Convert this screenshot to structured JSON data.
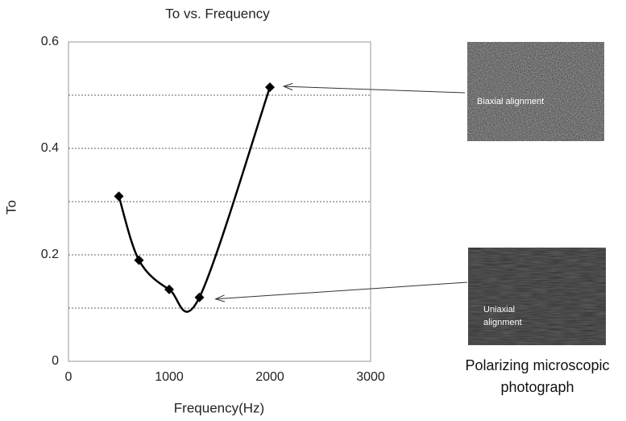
{
  "chart_data": {
    "type": "line",
    "title": "To vs. Frequency",
    "x_label": "Frequency(Hz)",
    "y_label": "To",
    "x": [
      500,
      700,
      1000,
      1300,
      2000
    ],
    "values": [
      0.31,
      0.19,
      0.135,
      0.12,
      0.515
    ],
    "color": "#000000",
    "xlim": [
      0,
      3000
    ],
    "xticks": [
      0,
      1000,
      2000,
      3000
    ],
    "ylim": [
      0,
      0.6
    ],
    "yticks": [
      0,
      0.2,
      0.4,
      0.6
    ],
    "grid_lines": [
      0.1,
      0.2,
      0.3,
      0.4,
      0.5
    ],
    "annotations": [
      {
        "text": "Biaxial alignment",
        "x": 2000,
        "y": 0.515
      },
      {
        "text": "Uniaxial alignment",
        "x": 1300,
        "y": 0.12
      }
    ],
    "caption": "Polarizing microscopic photograph"
  }
}
